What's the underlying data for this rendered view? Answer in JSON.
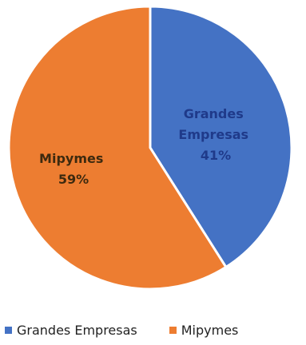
{
  "chart_data": {
    "type": "pie",
    "slices": [
      {
        "name": "Grandes Empresas",
        "label_line1": "Grandes",
        "label_line2": "Empresas",
        "percent_label": "41%",
        "value": 41,
        "color": "#4472c4",
        "label_color": "#1f3a8a"
      },
      {
        "name": "Mipymes",
        "label_line1": "Mipymes",
        "percent_label": "59%",
        "value": 59,
        "color": "#ed7d31",
        "label_color": "#3d2a0f"
      }
    ],
    "legend": {
      "placement": "bottom",
      "items": [
        "Grandes Empresas",
        "Mipymes"
      ]
    }
  }
}
